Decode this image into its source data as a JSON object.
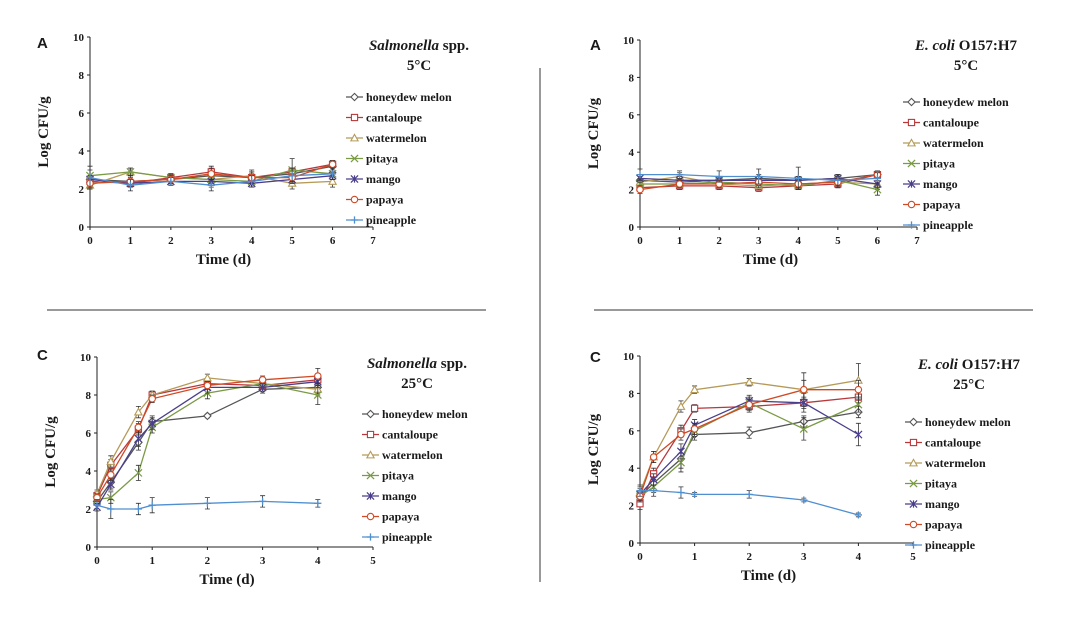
{
  "colors": {
    "honeydew melon": "#555555",
    "cantaloupe": "#b8383b",
    "watermelon": "#b59a58",
    "pitaya": "#7a9a45",
    "mango": "#4a3f8c",
    "papaya": "#d04a25",
    "pineapple": "#4f8fd0"
  },
  "chart_data": [
    {
      "type": "line",
      "panel": "A",
      "title": "Salmonella spp.",
      "title_italic_part": "Salmonella",
      "title_rest": " spp.",
      "subtitle": "5°C",
      "xlabel": "Time (d)",
      "ylabel": "Log CFU/g",
      "xlim": [
        0,
        7
      ],
      "ylim": [
        0,
        10
      ],
      "xticks": [
        0,
        1,
        2,
        3,
        4,
        5,
        6,
        7
      ],
      "yticks": [
        0,
        2,
        4,
        6,
        8,
        10
      ],
      "x": [
        0,
        1,
        2,
        3,
        4,
        5,
        6
      ],
      "series": [
        {
          "name": "honeydew melon",
          "marker": "diamond",
          "values": [
            2.5,
            2.4,
            2.5,
            2.7,
            2.6,
            2.8,
            3.2
          ],
          "errors": [
            0.2,
            0.2,
            0.2,
            0.2,
            0.2,
            0.3,
            0.2
          ]
        },
        {
          "name": "cantaloupe",
          "marker": "square",
          "values": [
            2.4,
            2.3,
            2.6,
            2.9,
            2.6,
            2.9,
            3.3
          ],
          "errors": [
            0.2,
            0.2,
            0.2,
            0.3,
            0.3,
            0.2,
            0.2
          ]
        },
        {
          "name": "watermelon",
          "marker": "triangle",
          "values": [
            2.2,
            2.9,
            2.6,
            2.5,
            2.7,
            2.3,
            2.4
          ],
          "errors": [
            0.2,
            0.2,
            0.2,
            0.2,
            0.3,
            0.3,
            0.3
          ]
        },
        {
          "name": "pitaya",
          "marker": "x",
          "values": [
            2.7,
            2.9,
            2.6,
            2.5,
            2.4,
            3.0,
            2.8
          ],
          "errors": [
            0.3,
            0.2,
            0.2,
            0.3,
            0.3,
            0.6,
            0.3
          ]
        },
        {
          "name": "mango",
          "marker": "star",
          "values": [
            2.5,
            2.3,
            2.4,
            2.4,
            2.3,
            2.5,
            2.7
          ],
          "errors": [
            0.2,
            0.2,
            0.2,
            0.3,
            0.2,
            0.2,
            0.2
          ]
        },
        {
          "name": "papaya",
          "marker": "circle",
          "values": [
            2.3,
            2.4,
            2.5,
            2.8,
            2.6,
            2.6,
            3.3
          ],
          "errors": [
            0.2,
            0.3,
            0.2,
            0.3,
            0.3,
            0.2,
            0.2
          ]
        },
        {
          "name": "pineapple",
          "marker": "plus",
          "values": [
            2.6,
            2.2,
            2.4,
            2.2,
            2.4,
            2.7,
            2.8
          ],
          "errors": [
            0.6,
            0.3,
            0.2,
            0.3,
            0.3,
            0.4,
            0.3
          ]
        }
      ]
    },
    {
      "type": "line",
      "panel": "A",
      "title": "E. coli O157:H7",
      "title_italic_part": "E. coli",
      "title_rest": " O157:H7",
      "subtitle": "5°C",
      "xlabel": "Time (d)",
      "ylabel": "Log CFU/g",
      "xlim": [
        0,
        7
      ],
      "ylim": [
        0,
        10
      ],
      "xticks": [
        0,
        1,
        2,
        3,
        4,
        5,
        6,
        7
      ],
      "yticks": [
        0,
        2,
        4,
        6,
        8,
        10
      ],
      "x": [
        0,
        1,
        2,
        3,
        4,
        5,
        6
      ],
      "series": [
        {
          "name": "honeydew melon",
          "marker": "diamond",
          "values": [
            2.5,
            2.4,
            2.5,
            2.6,
            2.5,
            2.6,
            2.8
          ],
          "errors": [
            0.2,
            0.2,
            0.2,
            0.2,
            0.2,
            0.2,
            0.2
          ]
        },
        {
          "name": "cantaloupe",
          "marker": "square",
          "values": [
            2.1,
            2.2,
            2.2,
            2.1,
            2.2,
            2.3,
            2.8
          ],
          "errors": [
            0.2,
            0.2,
            0.2,
            0.2,
            0.2,
            0.2,
            0.2
          ]
        },
        {
          "name": "watermelon",
          "marker": "triangle",
          "values": [
            2.4,
            2.7,
            2.3,
            2.2,
            2.3,
            2.4,
            2.3
          ],
          "errors": [
            0.2,
            0.2,
            0.2,
            0.2,
            0.3,
            0.3,
            0.3
          ]
        },
        {
          "name": "pitaya",
          "marker": "x",
          "values": [
            2.3,
            2.3,
            2.4,
            2.3,
            2.2,
            2.5,
            2.0
          ],
          "errors": [
            0.2,
            0.2,
            0.2,
            0.2,
            0.2,
            0.2,
            0.3
          ]
        },
        {
          "name": "mango",
          "marker": "star",
          "values": [
            2.6,
            2.5,
            2.5,
            2.5,
            2.5,
            2.6,
            2.3
          ],
          "errors": [
            0.2,
            0.2,
            0.2,
            0.2,
            0.2,
            0.2,
            0.2
          ]
        },
        {
          "name": "papaya",
          "marker": "circle",
          "values": [
            2.0,
            2.3,
            2.3,
            2.4,
            2.3,
            2.4,
            2.8
          ],
          "errors": [
            0.2,
            0.2,
            0.2,
            0.2,
            0.2,
            0.2,
            0.2
          ]
        },
        {
          "name": "pineapple",
          "marker": "plus",
          "values": [
            2.8,
            2.8,
            2.7,
            2.7,
            2.6,
            2.5,
            2.6
          ],
          "errors": [
            0.3,
            0.2,
            0.3,
            0.4,
            0.6,
            0.3,
            0.3
          ]
        }
      ]
    },
    {
      "type": "line",
      "panel": "C",
      "title": "Salmonella spp.",
      "title_italic_part": "Salmonella",
      "title_rest": " spp.",
      "subtitle": "25°C",
      "xlabel": "Time (d)",
      "ylabel": "Log CFU/g",
      "xlim": [
        0,
        5
      ],
      "ylim": [
        0,
        10
      ],
      "xticks": [
        0,
        1,
        2,
        3,
        4,
        5
      ],
      "yticks": [
        0,
        2,
        4,
        6,
        8,
        10
      ],
      "x": [
        0,
        0.25,
        0.75,
        1,
        2,
        3,
        4
      ],
      "series": [
        {
          "name": "honeydew melon",
          "marker": "diamond",
          "values": [
            2.4,
            3.4,
            5.5,
            6.6,
            6.9,
            8.3,
            8.4
          ],
          "errors": [
            0.2,
            0.3,
            0.4,
            0.3,
            0.1,
            0.2,
            0.3
          ]
        },
        {
          "name": "cantaloupe",
          "marker": "square",
          "values": [
            2.7,
            4.3,
            6.2,
            8.0,
            8.6,
            8.5,
            8.8
          ],
          "errors": [
            0.2,
            0.3,
            0.3,
            0.2,
            0.2,
            0.2,
            0.3
          ]
        },
        {
          "name": "watermelon",
          "marker": "triangle",
          "values": [
            2.8,
            4.5,
            7.1,
            8.0,
            8.9,
            8.6,
            8.3
          ],
          "errors": [
            0.2,
            0.3,
            0.3,
            0.2,
            0.2,
            0.2,
            0.3
          ]
        },
        {
          "name": "pitaya",
          "marker": "x",
          "values": [
            2.5,
            2.6,
            3.9,
            6.3,
            8.1,
            8.6,
            8.0
          ],
          "errors": [
            0.2,
            0.3,
            0.4,
            0.3,
            0.3,
            0.2,
            0.5
          ]
        },
        {
          "name": "mango",
          "marker": "star",
          "values": [
            2.1,
            3.3,
            5.7,
            6.5,
            8.4,
            8.4,
            8.7
          ],
          "errors": [
            0.2,
            0.3,
            0.4,
            0.3,
            0.3,
            0.2,
            0.3
          ]
        },
        {
          "name": "papaya",
          "marker": "circle",
          "values": [
            2.6,
            3.8,
            6.3,
            7.8,
            8.5,
            8.8,
            9.0
          ],
          "errors": [
            0.2,
            0.3,
            0.3,
            0.2,
            0.2,
            0.2,
            0.4
          ]
        },
        {
          "name": "pineapple",
          "marker": "plus",
          "values": [
            2.2,
            2.0,
            2.0,
            2.2,
            2.3,
            2.4,
            2.3
          ],
          "errors": [
            0.3,
            0.5,
            0.3,
            0.4,
            0.3,
            0.3,
            0.2
          ]
        }
      ]
    },
    {
      "type": "line",
      "panel": "C",
      "title": "E. coli O157:H7",
      "title_italic_part": "E. coli",
      "title_rest": " O157:H7",
      "subtitle": "25°C",
      "xlabel": "Time (d)",
      "ylabel": "Log CFU/g",
      "xlim": [
        0,
        5
      ],
      "ylim": [
        0,
        10
      ],
      "xticks": [
        0,
        1,
        2,
        3,
        4,
        5
      ],
      "yticks": [
        0,
        2,
        4,
        6,
        8,
        10
      ],
      "x": [
        0,
        0.25,
        0.75,
        1,
        2,
        3,
        4
      ],
      "series": [
        {
          "name": "honeydew melon",
          "marker": "diamond",
          "values": [
            2.5,
            3.2,
            4.5,
            5.8,
            5.9,
            6.5,
            7.0
          ],
          "errors": [
            0.3,
            0.3,
            0.5,
            0.3,
            0.3,
            0.3,
            0.3
          ]
        },
        {
          "name": "cantaloupe",
          "marker": "square",
          "values": [
            2.1,
            3.7,
            6.0,
            7.2,
            7.3,
            7.5,
            7.8
          ],
          "errors": [
            0.3,
            0.3,
            0.3,
            0.2,
            0.3,
            0.3,
            0.3
          ]
        },
        {
          "name": "watermelon",
          "marker": "triangle",
          "values": [
            2.7,
            4.6,
            7.3,
            8.2,
            8.6,
            8.2,
            8.7
          ],
          "errors": [
            0.3,
            0.3,
            0.3,
            0.2,
            0.2,
            0.9,
            0.9
          ]
        },
        {
          "name": "pitaya",
          "marker": "x",
          "values": [
            2.5,
            3.0,
            4.3,
            6.0,
            7.5,
            6.1,
            7.4
          ],
          "errors": [
            0.3,
            0.3,
            0.5,
            0.3,
            0.3,
            0.6,
            0.4
          ]
        },
        {
          "name": "mango",
          "marker": "star",
          "values": [
            2.6,
            3.4,
            4.9,
            6.3,
            7.6,
            7.5,
            5.8
          ],
          "errors": [
            0.3,
            0.3,
            0.4,
            0.3,
            0.3,
            0.5,
            0.6
          ]
        },
        {
          "name": "papaya",
          "marker": "circle",
          "values": [
            2.5,
            4.6,
            5.8,
            6.1,
            7.4,
            8.2,
            8.2
          ],
          "errors": [
            0.3,
            0.3,
            0.3,
            0.3,
            0.3,
            0.5,
            0.5
          ]
        },
        {
          "name": "pineapple",
          "marker": "plus",
          "values": [
            2.8,
            2.8,
            2.7,
            2.6,
            2.6,
            2.3,
            1.5
          ],
          "errors": [
            0.3,
            0.3,
            0.3,
            0.1,
            0.2,
            0.1,
            0.1
          ]
        }
      ]
    }
  ]
}
